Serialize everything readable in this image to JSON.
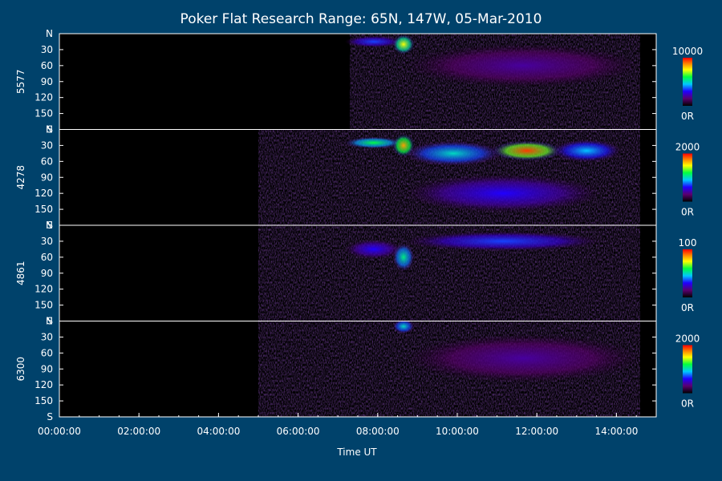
{
  "chart_data": {
    "type": "heatmap",
    "title": "Poker Flat Research Range: 65N, 147W, 05-Mar-2010",
    "xlabel": "Time UT",
    "x_ticks": [
      "00:00:00",
      "02:00:00",
      "04:00:00",
      "06:00:00",
      "08:00:00",
      "10:00:00",
      "12:00:00",
      "14:00:00"
    ],
    "xlim_hours": [
      0,
      15
    ],
    "y_ticks": [
      "N",
      "30",
      "60",
      "90",
      "120",
      "150",
      "S"
    ],
    "ylim_deg": [
      0,
      180
    ],
    "panels": [
      {
        "name": "5577",
        "colorbar": {
          "max_label": "10000",
          "min_label": "0R"
        },
        "data_start_hour": 7.3,
        "emission": [
          {
            "t_start": 7.3,
            "t_end": 8.5,
            "elev_center": 15,
            "elev_spread": 10,
            "level": 0.35
          },
          {
            "t_start": 8.5,
            "t_end": 8.8,
            "elev_center": 20,
            "elev_spread": 25,
            "level": 0.75
          },
          {
            "t_start": 8.8,
            "t_end": 14.5,
            "elev_center": 60,
            "elev_spread": 70,
            "level": 0.2
          }
        ]
      },
      {
        "name": "4278",
        "colorbar": {
          "max_label": "2000",
          "min_label": "0R"
        },
        "data_start_hour": 5.0,
        "emission": [
          {
            "t_start": 7.3,
            "t_end": 8.5,
            "elev_center": 25,
            "elev_spread": 10,
            "level": 0.6
          },
          {
            "t_start": 8.5,
            "t_end": 8.8,
            "elev_center": 30,
            "elev_spread": 30,
            "level": 0.85
          },
          {
            "t_start": 8.8,
            "t_end": 11.0,
            "elev_center": 45,
            "elev_spread": 35,
            "level": 0.5
          },
          {
            "t_start": 11.0,
            "t_end": 12.5,
            "elev_center": 40,
            "elev_spread": 25,
            "level": 0.95
          },
          {
            "t_start": 12.5,
            "t_end": 14.0,
            "elev_center": 40,
            "elev_spread": 30,
            "level": 0.45
          },
          {
            "t_start": 8.8,
            "t_end": 13.5,
            "elev_center": 120,
            "elev_spread": 60,
            "level": 0.3
          }
        ]
      },
      {
        "name": "4861",
        "colorbar": {
          "max_label": "100",
          "min_label": "0R"
        },
        "data_start_hour": 5.0,
        "emission": [
          {
            "t_start": 7.3,
            "t_end": 8.5,
            "elev_center": 45,
            "elev_spread": 25,
            "level": 0.3
          },
          {
            "t_start": 8.5,
            "t_end": 8.8,
            "elev_center": 60,
            "elev_spread": 40,
            "level": 0.55
          },
          {
            "t_start": 8.8,
            "t_end": 13.5,
            "elev_center": 30,
            "elev_spread": 25,
            "level": 0.35
          }
        ]
      },
      {
        "name": "6300",
        "colorbar": {
          "max_label": "2000",
          "min_label": "0R"
        },
        "data_start_hour": 5.0,
        "emission": [
          {
            "t_start": 8.5,
            "t_end": 8.8,
            "elev_center": 10,
            "elev_spread": 15,
            "level": 0.5
          },
          {
            "t_start": 8.8,
            "t_end": 14.5,
            "elev_center": 70,
            "elev_spread": 80,
            "level": 0.2
          }
        ]
      }
    ],
    "colors": {
      "background": "#00426b",
      "plot_background": "#000000",
      "text": "#ffffff"
    }
  }
}
